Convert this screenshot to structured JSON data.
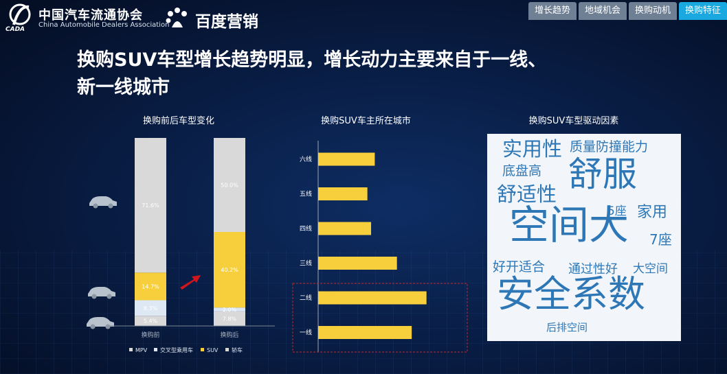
{
  "header": {
    "logo_lettering": "CADA",
    "org_cn": "中国汽车流通协会",
    "org_en": "China Automobile Dealers Association",
    "partner": "百度营销"
  },
  "tabs": [
    {
      "label": "增长趋势",
      "active": false
    },
    {
      "label": "地域机会",
      "active": false
    },
    {
      "label": "换购动机",
      "active": false
    },
    {
      "label": "换购特征",
      "active": true
    }
  ],
  "title_line1": "换购SUV车型增长趋势明显，增长动力主要来自于一线、",
  "title_line2": "新一线城市",
  "colors": {
    "mpv": "#d9d9d9",
    "crossover": "#dde8f4",
    "suv": "#f7cf3c",
    "sedan": "#d9d9d9",
    "accent_tab": "#19a8e0",
    "wordcloud": "#2e77b6"
  },
  "chart_data": [
    {
      "type": "bar",
      "stacked": true,
      "title": "换购前后车型变化",
      "categories": [
        "换购前",
        "换购后"
      ],
      "series": [
        {
          "name": "轿车",
          "values": [
            5.4,
            7.8
          ],
          "labels": [
            "5.4%",
            "7.8%"
          ]
        },
        {
          "name": "交叉型乘用车",
          "values": [
            8.3,
            2.0
          ],
          "labels": [
            "8.3%",
            "2.0%"
          ]
        },
        {
          "name": "SUV",
          "values": [
            14.7,
            40.2
          ],
          "labels": [
            "14.7%",
            "40.2%"
          ]
        },
        {
          "name": "MPV",
          "values": [
            71.6,
            50.0
          ],
          "labels": [
            "71.6%",
            "50.0%"
          ]
        }
      ],
      "legend": [
        "MPV",
        "交叉型乘用车",
        "SUV",
        "轿车"
      ],
      "legend_position": "bottom",
      "ylim": [
        0,
        100
      ]
    },
    {
      "type": "bar",
      "orientation": "horizontal",
      "title": "换购SUV车主所在城市",
      "categories": [
        "六线",
        "五线",
        "四线",
        "三线",
        "二线",
        "一线"
      ],
      "values": [
        23,
        20,
        21.5,
        32,
        44,
        38
      ],
      "highlighted": [
        "二线",
        "一线"
      ],
      "xlim": [
        0,
        60
      ]
    },
    {
      "type": "wordcloud",
      "title": "换购SUV车型驱动因素",
      "words": [
        "实用性",
        "质量防撞能力",
        "底盘高",
        "舒服",
        "舒适性",
        "5座",
        "家用",
        "空间大",
        "7座",
        "好开适合",
        "通过性好",
        "大空间",
        "安全系数",
        "后排空间"
      ]
    }
  ]
}
